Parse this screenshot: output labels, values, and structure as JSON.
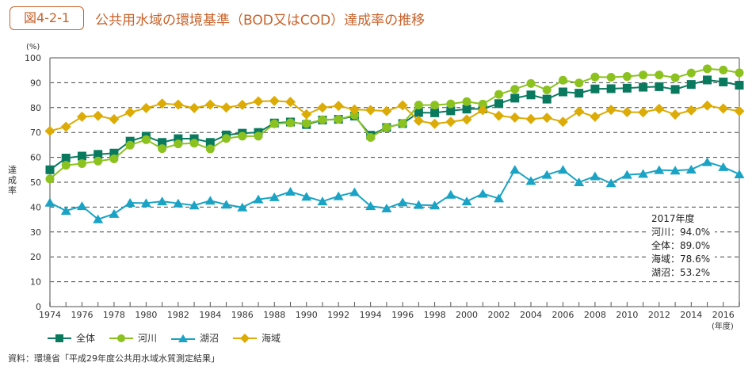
{
  "figure": {
    "number": "図4-2-1",
    "title": "公共用水域の環境基準（BOD又はCOD）達成率の推移",
    "source": "資料：環境省「平成29年度公共用水域水質測定結果」",
    "accent_color": "#c8622a"
  },
  "annotation": {
    "heading": "2017年度",
    "lines": [
      "河川：94.0%",
      "全体：89.0%",
      "海域：78.6%",
      "湖沼：53.2%"
    ]
  },
  "chart_data": {
    "type": "line",
    "title": "公共用水域の環境基準（BOD又はCOD）達成率の推移",
    "ylabel": "達成率",
    "yunit": "(%)",
    "xunit": "(年度)",
    "ylim": [
      0,
      100
    ],
    "yticks": [
      0,
      10,
      20,
      30,
      40,
      50,
      60,
      70,
      80,
      90,
      100
    ],
    "xlim": [
      1974,
      2017
    ],
    "xtick_labels": [
      "1974",
      "1976",
      "1978",
      "1980",
      "1982",
      "1984",
      "1986",
      "1988",
      "1990",
      "1992",
      "1994",
      "1996",
      "1998",
      "2000",
      "2002",
      "2004",
      "2006",
      "2008",
      "2010",
      "2012",
      "2014",
      "2016"
    ],
    "grid": "horizontal-dashed",
    "legend_position": "bottom-left",
    "x": [
      1974,
      1975,
      1976,
      1977,
      1978,
      1979,
      1980,
      1981,
      1982,
      1983,
      1984,
      1985,
      1986,
      1987,
      1988,
      1989,
      1990,
      1991,
      1992,
      1993,
      1994,
      1995,
      1996,
      1997,
      1998,
      1999,
      2000,
      2001,
      2002,
      2003,
      2004,
      2005,
      2006,
      2007,
      2008,
      2009,
      2010,
      2011,
      2012,
      2013,
      2014,
      2015,
      2016,
      2017
    ],
    "series": [
      {
        "name": "全体",
        "marker": "square",
        "color": "#0a7a5f",
        "values": [
          55.0,
          59.7,
          60.5,
          61.2,
          61.7,
          66.5,
          68.5,
          66.0,
          67.5,
          67.5,
          66.0,
          69.0,
          69.7,
          70.0,
          73.8,
          74.2,
          73.2,
          75.0,
          75.3,
          76.6,
          68.9,
          72.0,
          73.6,
          78.0,
          77.9,
          78.7,
          79.4,
          79.5,
          81.6,
          83.8,
          85.1,
          83.4,
          86.3,
          85.8,
          87.5,
          87.6,
          87.8,
          88.2,
          88.4,
          87.3,
          89.3,
          91.1,
          90.3,
          89.0
        ]
      },
      {
        "name": "河川",
        "marker": "circle",
        "color": "#8cc21f",
        "values": [
          51.3,
          56.8,
          57.5,
          58.5,
          59.4,
          64.9,
          67.1,
          63.5,
          65.4,
          65.7,
          63.4,
          67.6,
          68.5,
          68.5,
          73.5,
          73.9,
          73.6,
          75.1,
          75.3,
          77.0,
          68.0,
          72.0,
          73.6,
          81.0,
          81.0,
          81.5,
          82.4,
          81.4,
          85.3,
          87.4,
          89.7,
          87.1,
          91.0,
          89.9,
          92.3,
          92.2,
          92.5,
          93.1,
          93.1,
          92.0,
          93.9,
          95.6,
          95.1,
          94.0
        ]
      },
      {
        "name": "湖沼",
        "marker": "triangle",
        "color": "#1aa3c4",
        "values": [
          41.8,
          38.5,
          40.4,
          35.1,
          37.3,
          41.7,
          41.6,
          42.3,
          41.5,
          40.7,
          42.6,
          41.0,
          39.9,
          43.1,
          44.0,
          46.2,
          44.2,
          42.3,
          44.4,
          46.0,
          40.4,
          39.5,
          41.9,
          40.9,
          40.7,
          45.0,
          42.3,
          45.4,
          43.5,
          55.0,
          50.5,
          53.0,
          55.0,
          50.0,
          52.4,
          49.6,
          53.0,
          53.4,
          54.9,
          54.7,
          55.1,
          58.1,
          56.1,
          53.2
        ]
      },
      {
        "name": "海域",
        "marker": "diamond",
        "color": "#dcab05",
        "values": [
          70.6,
          72.3,
          76.3,
          76.7,
          75.3,
          78.1,
          79.8,
          81.6,
          81.2,
          79.8,
          81.2,
          80.0,
          81.1,
          82.5,
          82.7,
          82.3,
          77.3,
          80.0,
          80.7,
          79.2,
          79.0,
          78.6,
          80.9,
          74.7,
          73.5,
          74.3,
          75.2,
          79.0,
          76.7,
          76.0,
          75.4,
          75.9,
          74.3,
          78.4,
          76.3,
          79.1,
          78.2,
          78.1,
          79.5,
          77.2,
          78.9,
          80.8,
          79.6,
          78.6
        ]
      }
    ]
  }
}
